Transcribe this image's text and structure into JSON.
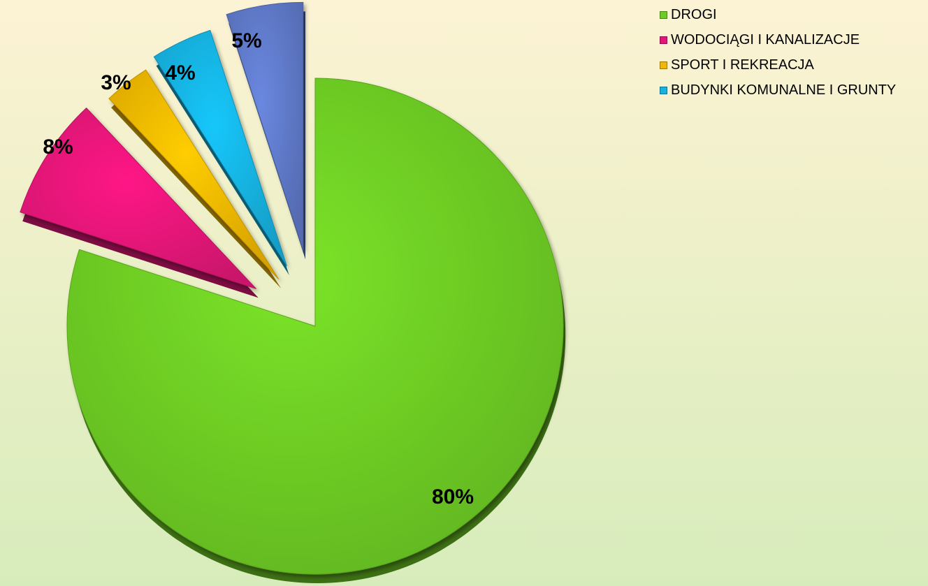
{
  "chart_data": {
    "type": "pie",
    "title": "",
    "slices": [
      {
        "name": "DROGI",
        "value": 80,
        "label": "80%",
        "color": "#6ecc24"
      },
      {
        "name": "WODOCIĄGI I KANALIZACJE",
        "value": 8,
        "label": "8%",
        "color": "#e41678"
      },
      {
        "name": "SPORT I REKREACJA",
        "value": 3,
        "label": "3%",
        "color": "#f2b705"
      },
      {
        "name": "BUDYNKI KOMUNALNE I GRUNTY",
        "value": 4,
        "label": "4%",
        "color": "#16b2e0"
      },
      {
        "name": "",
        "value": 5,
        "label": "5%",
        "color": "#5f79c8"
      }
    ],
    "legend_position": "top-right",
    "exploded": true,
    "style": "3d"
  }
}
